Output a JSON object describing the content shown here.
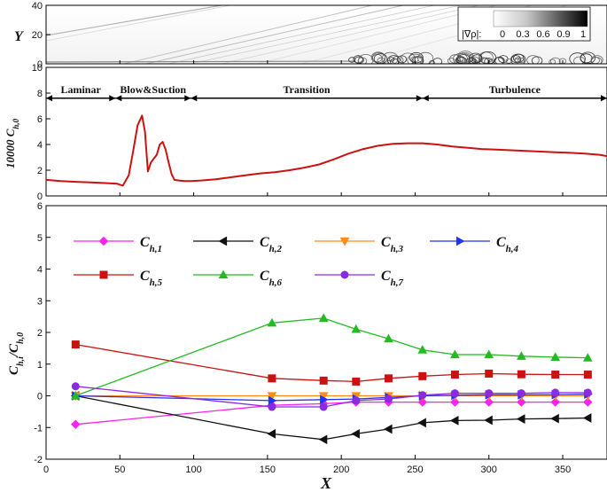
{
  "chart_data": [
    {
      "type": "heatmap",
      "ylabel": "Y",
      "xlim": [
        0,
        380
      ],
      "ylim": [
        0,
        40
      ],
      "y_ticks": [
        "0",
        "20",
        "40"
      ],
      "colorbar": {
        "label": "|∇ρ|:",
        "ticks": [
          "0",
          "0.3",
          "0.6",
          "0.9",
          "1"
        ],
        "cmap": "gray-white-to-black"
      }
    },
    {
      "type": "line",
      "ylabel": "10000 C_{h,0}",
      "ylabel_main": "10000 C",
      "ylabel_sub": "h,0",
      "xlim": [
        0,
        380
      ],
      "ylim": [
        0,
        10
      ],
      "y_ticks": [
        "0",
        "2",
        "4",
        "6",
        "8",
        "10"
      ],
      "regions": [
        {
          "label": "Laminar",
          "x_start": 0,
          "x_end": 47
        },
        {
          "label": "Blow&Suction",
          "x_start": 47,
          "x_end": 98
        },
        {
          "label": "Transition",
          "x_start": 98,
          "x_end": 255
        },
        {
          "label": "Turbulence",
          "x_start": 255,
          "x_end": 380
        }
      ],
      "series": [
        {
          "color": "#cc1111",
          "x": [
            0,
            10,
            20,
            30,
            40,
            48,
            52,
            56,
            59,
            62,
            65,
            67,
            69,
            71,
            73,
            75,
            77,
            79,
            81,
            83,
            85,
            87,
            90,
            94,
            98,
            105,
            115,
            125,
            135,
            145,
            155,
            165,
            175,
            185,
            195,
            205,
            215,
            225,
            235,
            245,
            255,
            265,
            275,
            285,
            295,
            305,
            315,
            325,
            335,
            345,
            355,
            365,
            375,
            380
          ],
          "y": [
            1.25,
            1.15,
            1.1,
            1.05,
            1.0,
            0.95,
            0.8,
            1.6,
            3.5,
            5.5,
            6.25,
            5.0,
            1.9,
            2.6,
            2.9,
            3.2,
            4.0,
            4.2,
            3.6,
            2.6,
            1.7,
            1.25,
            1.2,
            1.15,
            1.15,
            1.2,
            1.3,
            1.45,
            1.6,
            1.75,
            1.85,
            2.0,
            2.2,
            2.45,
            2.85,
            3.3,
            3.65,
            3.9,
            4.05,
            4.1,
            4.1,
            4.0,
            3.85,
            3.75,
            3.65,
            3.6,
            3.55,
            3.5,
            3.45,
            3.4,
            3.35,
            3.3,
            3.2,
            3.1
          ]
        }
      ]
    },
    {
      "type": "line",
      "xlabel": "X",
      "ylabel": "C_{h,i}/C_{h,0}",
      "ylabel_main": "C",
      "ylabel_sub": "h,i",
      "ylabel_mid": "/C",
      "ylabel_sub2": "h,0",
      "xlim": [
        0,
        380
      ],
      "ylim": [
        -2,
        6
      ],
      "x_ticks": [
        "0",
        "50",
        "100",
        "150",
        "200",
        "250",
        "300",
        "350"
      ],
      "y_ticks": [
        "-2",
        "-1",
        "0",
        "1",
        "2",
        "3",
        "4",
        "5",
        "6"
      ],
      "x": [
        20,
        153,
        188,
        210,
        232,
        255,
        277,
        300,
        322,
        345,
        367
      ],
      "series": [
        {
          "name_main": "C",
          "name_sub": "h,1",
          "color": "#ff22ee",
          "marker": "diamond",
          "values": [
            -0.9,
            -0.3,
            -0.25,
            -0.2,
            -0.2,
            -0.2,
            -0.2,
            -0.2,
            -0.2,
            -0.2,
            -0.2
          ]
        },
        {
          "name_main": "C",
          "name_sub": "h,2",
          "color": "#111111",
          "marker": "triangle-left",
          "values": [
            0.0,
            -1.2,
            -1.38,
            -1.2,
            -1.05,
            -0.85,
            -0.78,
            -0.77,
            -0.73,
            -0.72,
            -0.7
          ]
        },
        {
          "name_main": "C",
          "name_sub": "h,3",
          "color": "#ff8c1a",
          "marker": "triangle-down",
          "values": [
            0.0,
            0.0,
            0.0,
            0.0,
            0.0,
            0.0,
            0.0,
            0.0,
            0.0,
            0.0,
            0.0
          ]
        },
        {
          "name_main": "C",
          "name_sub": "h,4",
          "color": "#2233ee",
          "marker": "triangle-right",
          "values": [
            0.0,
            -0.15,
            -0.12,
            -0.1,
            -0.05,
            0.0,
            0.02,
            0.03,
            0.03,
            0.04,
            0.05
          ]
        },
        {
          "name_main": "C",
          "name_sub": "h,5",
          "color": "#cc1111",
          "marker": "square",
          "values": [
            1.62,
            0.55,
            0.48,
            0.45,
            0.55,
            0.62,
            0.67,
            0.7,
            0.68,
            0.67,
            0.67
          ]
        },
        {
          "name_main": "C",
          "name_sub": "h,6",
          "color": "#22bb22",
          "marker": "triangle-up",
          "values": [
            0.0,
            2.3,
            2.45,
            2.1,
            1.8,
            1.45,
            1.3,
            1.3,
            1.25,
            1.22,
            1.2
          ]
        },
        {
          "name_main": "C",
          "name_sub": "h,7",
          "color": "#8a2be2",
          "marker": "circle",
          "values": [
            0.3,
            -0.35,
            -0.35,
            -0.15,
            -0.1,
            0.02,
            0.08,
            0.08,
            0.08,
            0.1,
            0.1
          ]
        }
      ]
    }
  ]
}
